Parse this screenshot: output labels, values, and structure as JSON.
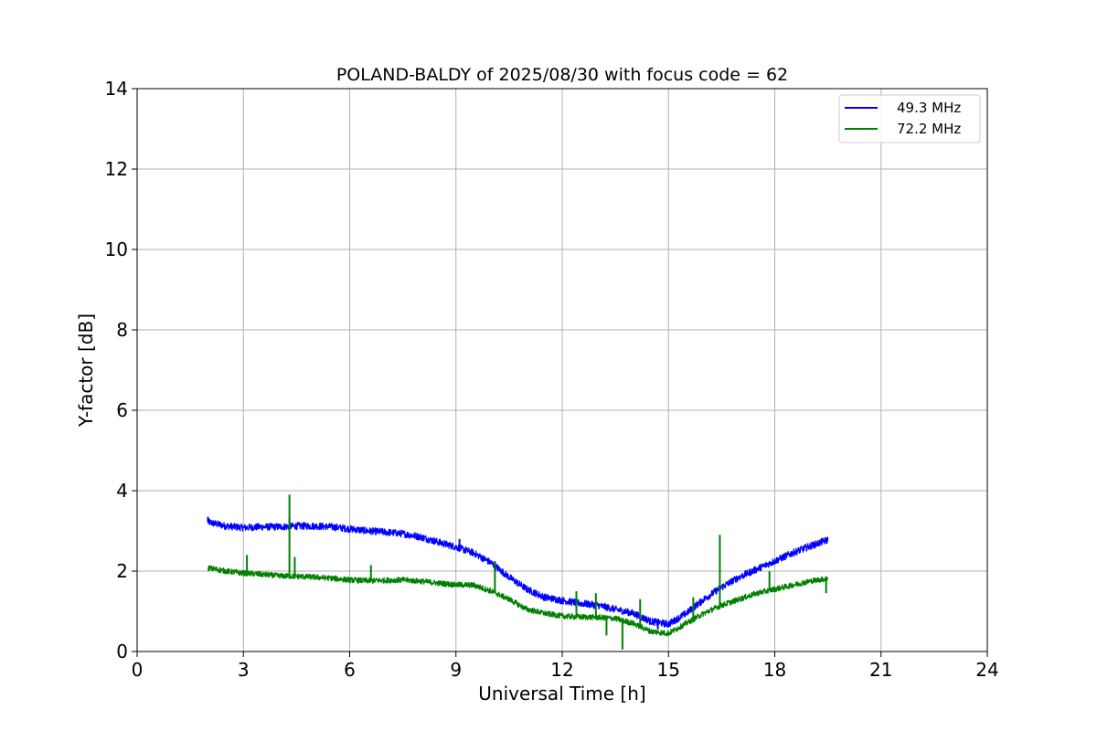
{
  "chart_data": {
    "type": "line",
    "title": "POLAND-BALDY of 2025/08/30 with focus code = 62",
    "xlabel": "Universal Time [h]",
    "ylabel": "Y-factor [dB]",
    "xlim": [
      0,
      24
    ],
    "ylim": [
      0,
      14
    ],
    "xticks": [
      "0",
      "3",
      "6",
      "9",
      "12",
      "15",
      "18",
      "21",
      "24"
    ],
    "yticks": [
      "0",
      "2",
      "4",
      "6",
      "8",
      "10",
      "12",
      "14"
    ],
    "grid": true,
    "legend_position": "top-right",
    "series": [
      {
        "name": "49.3 MHz",
        "color": "#0000ff",
        "noise": 0.09,
        "x": [
          2.0,
          2.5,
          3.0,
          3.5,
          4.0,
          4.5,
          5.0,
          5.5,
          6.0,
          6.5,
          7.0,
          7.5,
          8.0,
          8.5,
          9.0,
          9.5,
          10.0,
          10.5,
          11.0,
          11.5,
          12.0,
          12.5,
          13.0,
          13.5,
          14.0,
          14.5,
          15.0,
          15.5,
          16.0,
          16.5,
          17.0,
          17.5,
          18.0,
          18.5,
          19.0,
          19.5
        ],
        "y": [
          3.22,
          3.12,
          3.08,
          3.1,
          3.1,
          3.12,
          3.12,
          3.1,
          3.05,
          3.0,
          2.97,
          2.93,
          2.85,
          2.72,
          2.6,
          2.45,
          2.2,
          1.85,
          1.55,
          1.35,
          1.27,
          1.2,
          1.15,
          1.05,
          0.95,
          0.75,
          0.68,
          0.95,
          1.3,
          1.6,
          1.85,
          2.05,
          2.25,
          2.45,
          2.62,
          2.78
        ]
      },
      {
        "name": "72.2 MHz",
        "color": "#008000",
        "noise": 0.07,
        "x": [
          2.0,
          2.5,
          3.0,
          3.5,
          4.0,
          4.5,
          5.0,
          5.5,
          6.0,
          6.5,
          7.0,
          7.5,
          8.0,
          8.5,
          9.0,
          9.5,
          10.0,
          10.5,
          11.0,
          11.5,
          12.0,
          12.5,
          13.0,
          13.5,
          14.0,
          14.5,
          15.0,
          15.5,
          16.0,
          16.5,
          17.0,
          17.5,
          18.0,
          18.5,
          19.0,
          19.5
        ],
        "y": [
          2.08,
          2.0,
          1.95,
          1.92,
          1.88,
          1.87,
          1.85,
          1.82,
          1.78,
          1.76,
          1.77,
          1.78,
          1.75,
          1.7,
          1.66,
          1.65,
          1.5,
          1.3,
          1.05,
          0.95,
          0.88,
          0.86,
          0.85,
          0.82,
          0.7,
          0.5,
          0.45,
          0.7,
          0.95,
          1.15,
          1.3,
          1.45,
          1.55,
          1.65,
          1.75,
          1.82
        ]
      }
    ],
    "spikes": [
      {
        "series": 0,
        "x": 2.0,
        "y": 3.35
      },
      {
        "series": 0,
        "x": 4.3,
        "y": 3.3
      },
      {
        "series": 0,
        "x": 9.1,
        "y": 2.8
      },
      {
        "series": 0,
        "x": 14.7,
        "y": 0.55
      },
      {
        "series": 1,
        "x": 3.1,
        "y": 2.4
      },
      {
        "series": 1,
        "x": 4.3,
        "y": 3.9
      },
      {
        "series": 1,
        "x": 4.45,
        "y": 2.35
      },
      {
        "series": 1,
        "x": 6.6,
        "y": 2.15
      },
      {
        "series": 1,
        "x": 10.1,
        "y": 2.25
      },
      {
        "series": 1,
        "x": 12.4,
        "y": 1.5
      },
      {
        "series": 1,
        "x": 12.95,
        "y": 1.45
      },
      {
        "series": 1,
        "x": 13.25,
        "y": 0.4
      },
      {
        "series": 1,
        "x": 13.7,
        "y": 0.05
      },
      {
        "series": 1,
        "x": 14.2,
        "y": 1.3
      },
      {
        "series": 1,
        "x": 15.7,
        "y": 1.35
      },
      {
        "series": 1,
        "x": 16.45,
        "y": 2.9
      },
      {
        "series": 1,
        "x": 17.85,
        "y": 2.0
      },
      {
        "series": 1,
        "x": 19.45,
        "y": 1.45
      }
    ]
  }
}
